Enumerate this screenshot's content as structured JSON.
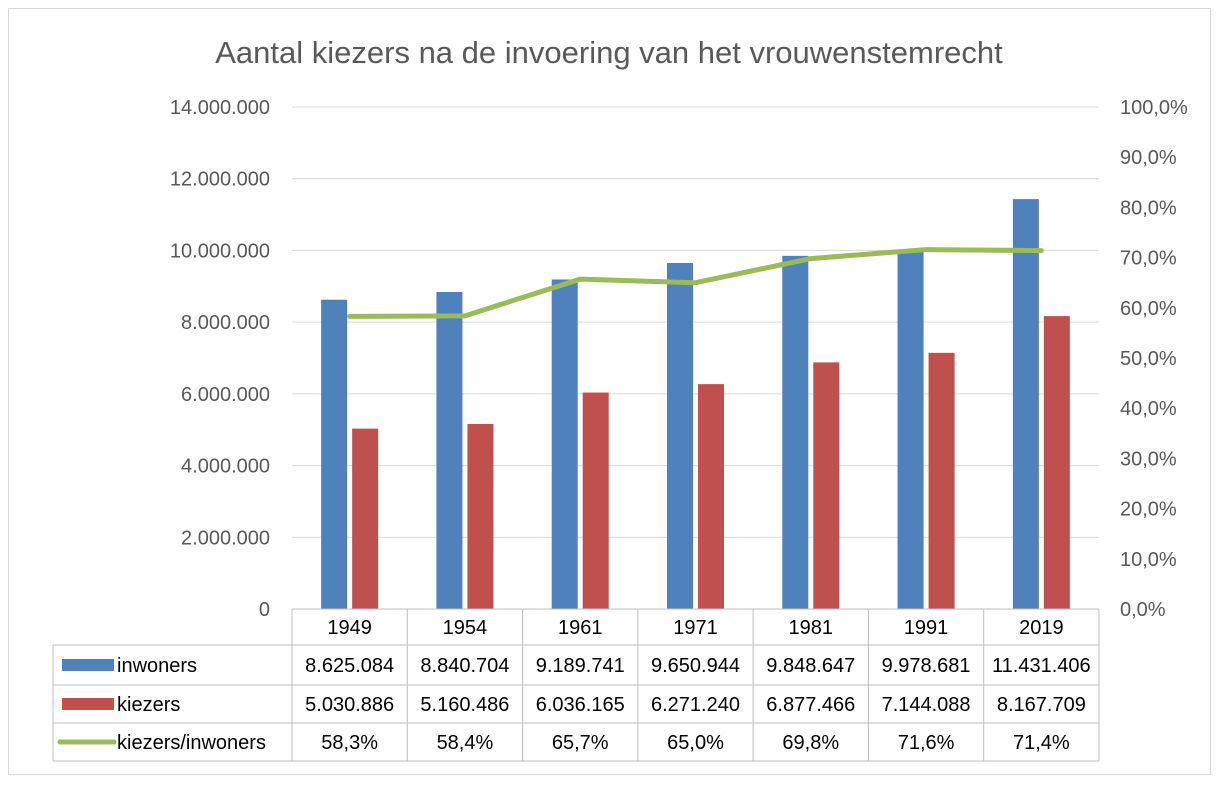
{
  "chart_data": {
    "type": "bar",
    "title": "Aantal kiezers na de invoering van het vrouwenstemrecht",
    "categories": [
      "1949",
      "1954",
      "1961",
      "1971",
      "1981",
      "1991",
      "2019"
    ],
    "y_left_range": [
      0,
      14000000
    ],
    "y_left_ticks": [
      "0",
      "2.000.000",
      "4.000.000",
      "6.000.000",
      "8.000.000",
      "10.000.000",
      "12.000.000",
      "14.000.000"
    ],
    "y_right_range": [
      0,
      100
    ],
    "y_right_ticks": [
      "0,0%",
      "10,0%",
      "20,0%",
      "30,0%",
      "40,0%",
      "50,0%",
      "60,0%",
      "70,0%",
      "80,0%",
      "90,0%",
      "100,0%"
    ],
    "grid": true,
    "legend": "data table below chart",
    "series": [
      {
        "name": "inwoners",
        "kind": "bar",
        "axis": "left",
        "color": "#4f81bd",
        "values": [
          8625084,
          8840704,
          9189741,
          9650944,
          9848647,
          9978681,
          11431406
        ],
        "labels": [
          "8.625.084",
          "8.840.704",
          "9.189.741",
          "9.650.944",
          "9.848.647",
          "9.978.681",
          "11.431.406"
        ]
      },
      {
        "name": "kiezers",
        "kind": "bar",
        "axis": "left",
        "color": "#c0504d",
        "values": [
          5030886,
          5160486,
          6036165,
          6271240,
          6877466,
          7144088,
          8167709
        ],
        "labels": [
          "5.030.886",
          "5.160.486",
          "6.036.165",
          "6.271.240",
          "6.877.466",
          "7.144.088",
          "8.167.709"
        ]
      },
      {
        "name": "kiezers/inwoners",
        "kind": "line",
        "axis": "right",
        "color": "#9bbb59",
        "values": [
          58.3,
          58.4,
          65.7,
          65.0,
          69.8,
          71.6,
          71.4
        ],
        "labels": [
          "58,3%",
          "58,4%",
          "65,7%",
          "65,0%",
          "69,8%",
          "71,6%",
          "71,4%"
        ]
      }
    ]
  }
}
